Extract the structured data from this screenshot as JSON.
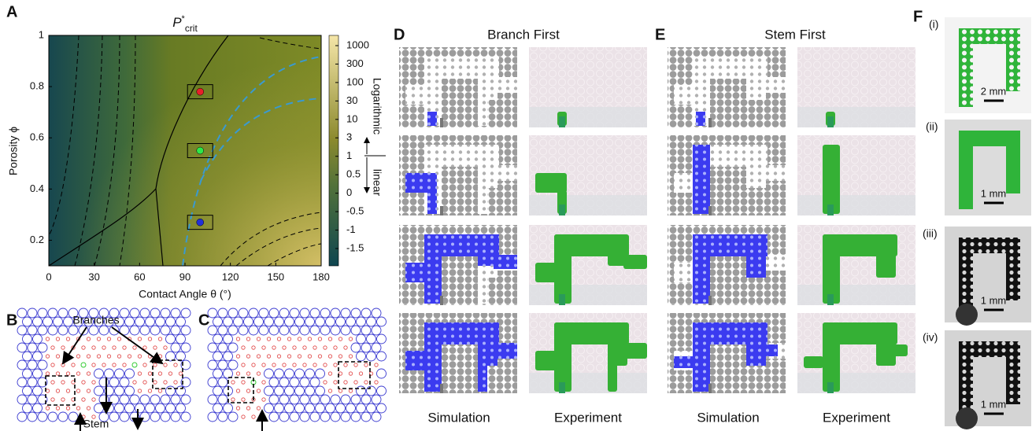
{
  "chart_data": {
    "type": "heatmap",
    "panel": "A",
    "title": {
      "base": "P",
      "sup": "*",
      "sub": "crit"
    },
    "x_label": "Contact Angle θ (°)",
    "y_label": "Porosity ϕ",
    "xlim": [
      0,
      180
    ],
    "xticks": [
      0,
      30,
      60,
      90,
      120,
      150,
      180
    ],
    "ylim": [
      0.1,
      1
    ],
    "yticks": [
      0.2,
      0.4,
      0.6,
      0.8,
      1
    ],
    "colorbar": {
      "ticks": [
        1000,
        300,
        100,
        30,
        10,
        3,
        1,
        0.5,
        0,
        -0.5,
        -1,
        -1.5
      ],
      "labels": [
        "Logarithmic",
        "linear"
      ]
    },
    "points": {
      "x": [
        100,
        100,
        100
      ],
      "y": [
        0.78,
        0.55,
        0.27
      ],
      "colors": [
        "#e8202a",
        "#2ee84a",
        "#2230d8"
      ]
    }
  },
  "panels": {
    "B": {
      "label": "B",
      "annotations": [
        "Branches",
        "Stem"
      ]
    },
    "C": {
      "label": "C"
    },
    "D": {
      "label": "D",
      "title": "Branch First",
      "columns": [
        "Simulation",
        "Experiment"
      ]
    },
    "E": {
      "label": "E",
      "title": "Stem First",
      "columns": [
        "Simulation",
        "Experiment"
      ]
    },
    "F": {
      "label": "F",
      "rows": [
        {
          "label": "(i)",
          "scale": "2 mm"
        },
        {
          "label": "(ii)",
          "scale": "1 mm"
        },
        {
          "label": "(iii)",
          "scale": "1 mm"
        },
        {
          "label": "(iv)",
          "scale": "1 mm"
        }
      ]
    }
  }
}
